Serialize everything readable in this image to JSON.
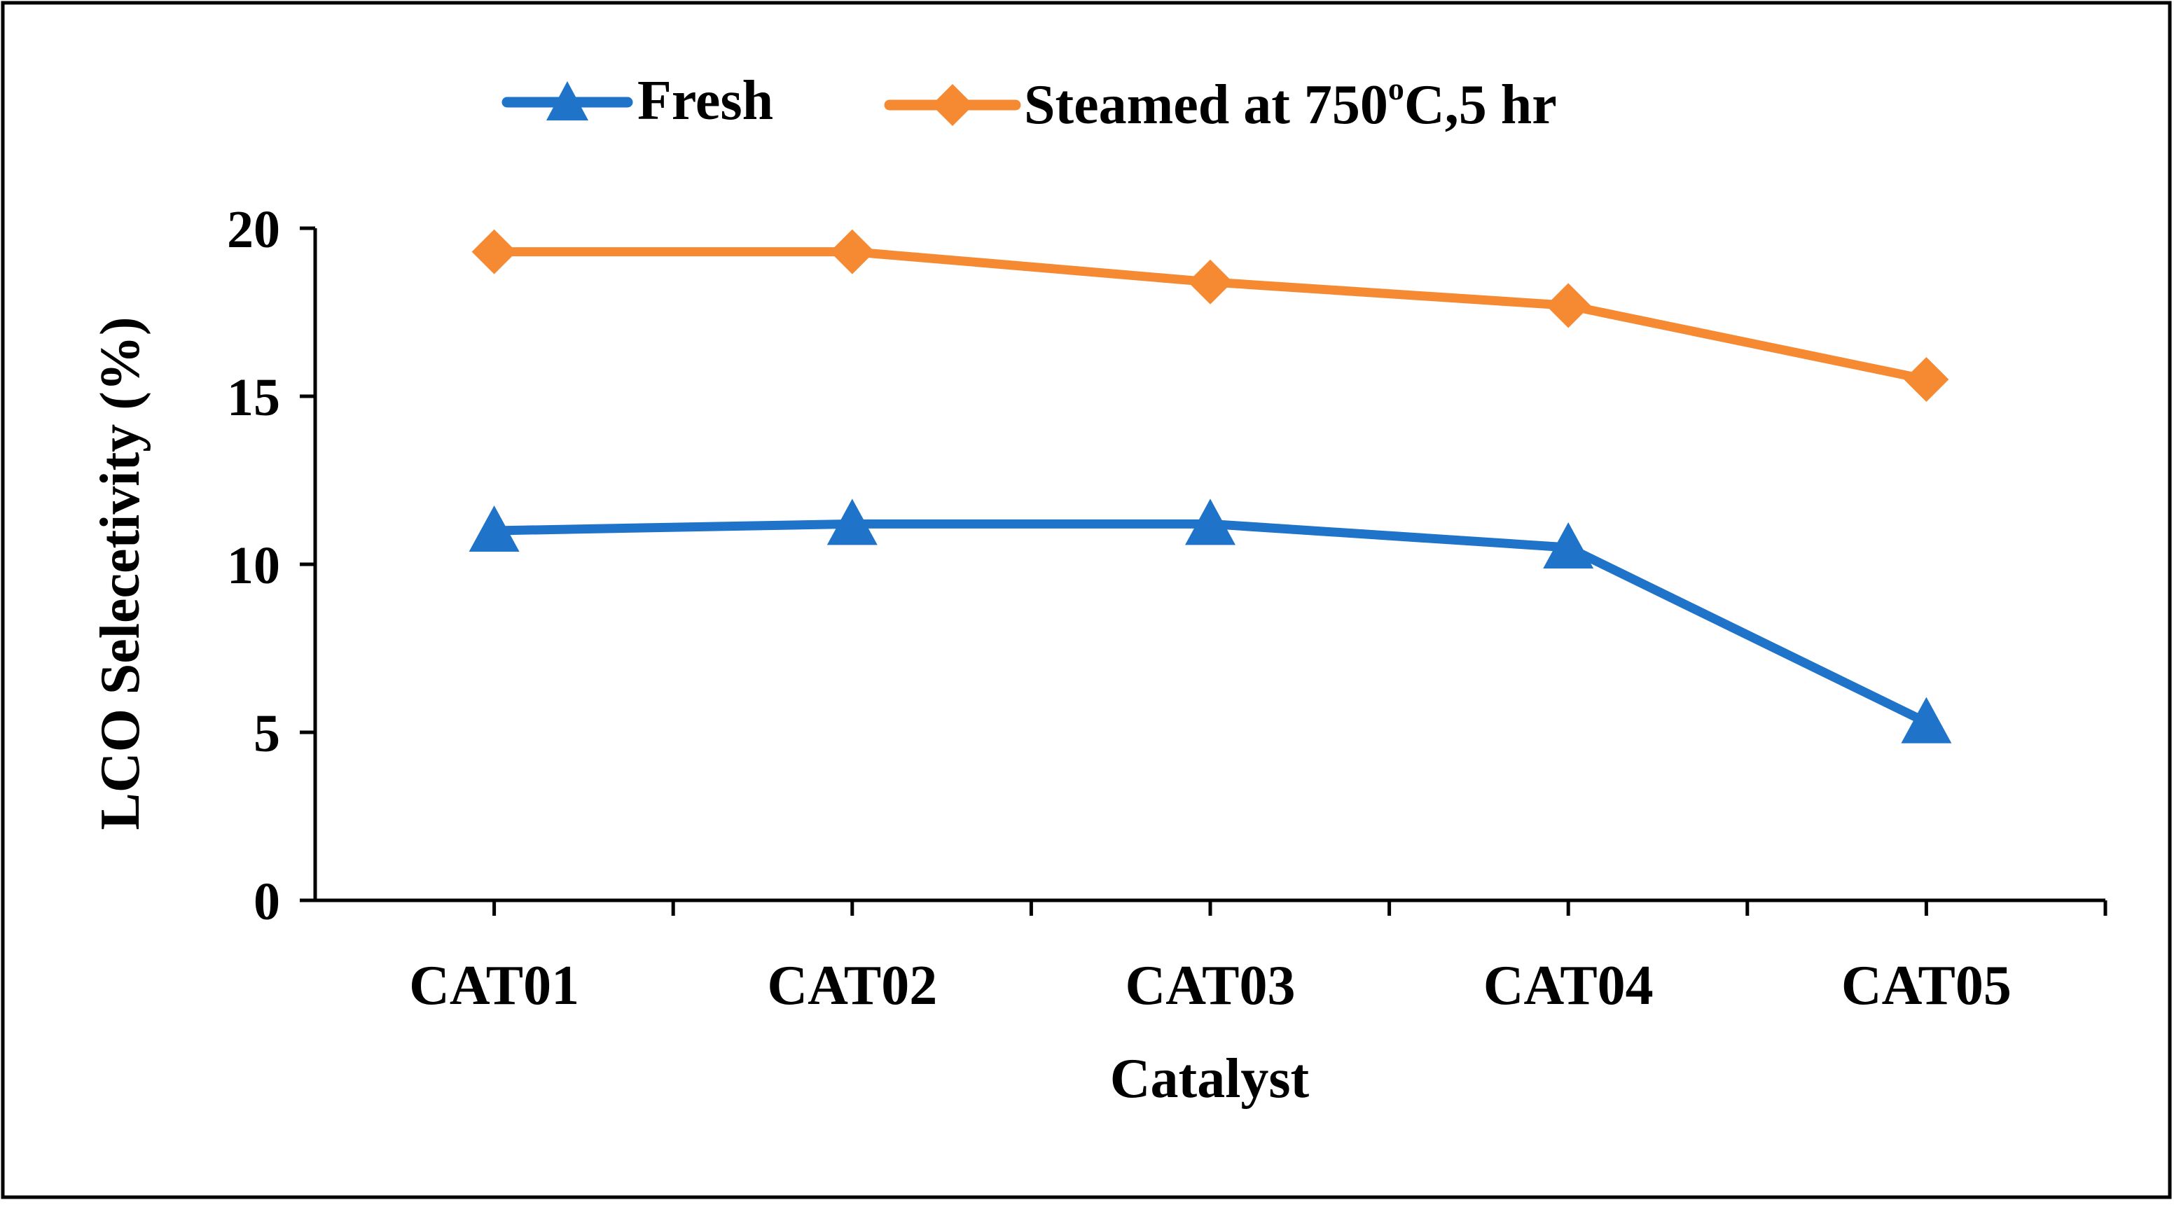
{
  "chart_data": {
    "type": "line",
    "title": "",
    "xlabel": "Catalyst",
    "ylabel": "LCO Selecetivity (%)",
    "categories": [
      "CAT01",
      "CAT02",
      "CAT03",
      "CAT04",
      "CAT05"
    ],
    "ylim": [
      0,
      20
    ],
    "yticks": [
      0,
      5,
      10,
      15,
      20
    ],
    "grid": false,
    "legend_position": "top-center",
    "series": [
      {
        "name": "Fresh",
        "marker": "triangle",
        "color": "#1f73c9",
        "values": [
          11.0,
          11.2,
          11.2,
          10.5,
          5.3
        ]
      },
      {
        "name_prefix": "Steamed at 750",
        "name_sup": "o",
        "name_suffix": "C,5 hr",
        "marker": "diamond",
        "color": "#f58a33",
        "values": [
          19.3,
          19.3,
          18.4,
          17.7,
          15.5
        ]
      }
    ]
  }
}
